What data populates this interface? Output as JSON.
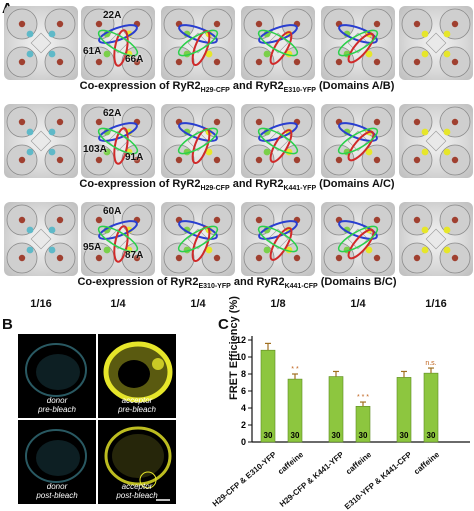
{
  "panels": {
    "a": "A",
    "b": "B",
    "c": "C"
  },
  "row_captions": [
    {
      "pre": "Co-expression of RyR2",
      "sub1": "H29-CFP",
      "mid": " and RyR2",
      "sub2": "E310-YFP",
      "post": " (Domains A/B)"
    },
    {
      "pre": "Co-expression of RyR2",
      "sub1": "H29-CFP",
      "mid": " and RyR2",
      "sub2": "K441-YFP",
      "post": " (Domains A/C)"
    },
    {
      "pre": "Co-expression of RyR2",
      "sub1": "E310-YFP",
      "mid": " and RyR2",
      "sub2": "K441-CFP",
      "post": " (Domains B/C)"
    }
  ],
  "distance_labels": [
    [
      "22A",
      "61A",
      "66A"
    ],
    [
      "62A",
      "103A",
      "91A"
    ],
    [
      "60A",
      "95A",
      "87A"
    ]
  ],
  "fractions": [
    "1/16",
    "1/4",
    "1/4",
    "1/8",
    "1/4",
    "1/16"
  ],
  "micrographs": [
    {
      "line1": "donor",
      "line2": "pre-bleach"
    },
    {
      "line1": "acceptor",
      "line2": "pre-bleach"
    },
    {
      "line1": "donor",
      "line2": "post-bleach"
    },
    {
      "line1": "acceptor",
      "line2": "post-bleach"
    }
  ],
  "colors": {
    "bar": "#8dc63f",
    "cyan": "#5fb9c8",
    "yellow": "#e6e62a",
    "significance": "#c0641e"
  },
  "chart_data": {
    "type": "bar",
    "ylabel": "FRET Efficiency (%)",
    "ylim": [
      0,
      12
    ],
    "yticks": [
      0,
      2,
      4,
      6,
      8,
      10,
      12
    ],
    "categories": [
      "H29-CFP & E310-YFP",
      "caffeine",
      "H29-CFP & K441-YFP",
      "caffeine",
      "E310-YFP & K441-CFP",
      "caffeine"
    ],
    "values": [
      10.8,
      7.4,
      7.7,
      4.2,
      7.6,
      8.1
    ],
    "errors": [
      0.8,
      0.6,
      0.6,
      0.5,
      0.7,
      0.6
    ],
    "n_labels": [
      "30",
      "30",
      "30",
      "30",
      "30",
      "30"
    ],
    "significance": [
      "",
      "* *",
      "",
      "* * *",
      "",
      "n.s."
    ]
  }
}
